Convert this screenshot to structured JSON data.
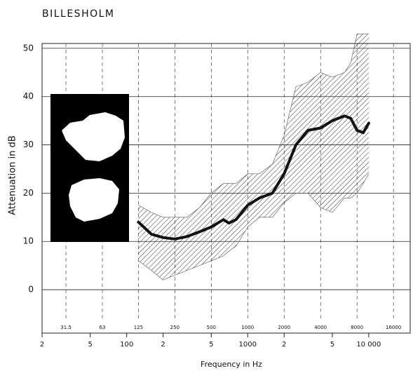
{
  "chart_data": {
    "type": "line",
    "title": "BILLESHOLM",
    "y_label": "Attenuation in dB",
    "x_label": "Frequency in Hz",
    "x": [
      125,
      160,
      200,
      250,
      315,
      400,
      500,
      630,
      700,
      800,
      1000,
      1250,
      1600,
      2000,
      2500,
      3150,
      4000,
      5000,
      6300,
      7100,
      8000,
      9000,
      10000
    ],
    "values": [
      14,
      11.5,
      10.8,
      10.5,
      11,
      12,
      13,
      14.5,
      13.8,
      14.5,
      17.5,
      19,
      20,
      24,
      30,
      33,
      33.5,
      35,
      36,
      35.5,
      33,
      32.5,
      34.5
    ],
    "range_high": [
      17.5,
      16,
      15,
      15,
      15,
      17,
      20,
      22,
      22,
      22,
      24,
      24,
      26,
      32,
      42,
      43,
      45,
      44,
      45,
      47,
      53,
      53,
      53
    ],
    "range_low": [
      6,
      4,
      2,
      3,
      4,
      5,
      6,
      7,
      8,
      9,
      13,
      15,
      15,
      18,
      20,
      20,
      17,
      16,
      19,
      19,
      20,
      22,
      24
    ],
    "color": "#111111",
    "log_x": true,
    "grid": true,
    "xlim": [
      20,
      22000
    ],
    "ylim": [
      -9,
      51
    ],
    "yticks": [
      0,
      10,
      20,
      30,
      40,
      50
    ],
    "xticks": [
      {
        "value": 20,
        "label": "2"
      },
      {
        "value": 50,
        "label": "5"
      },
      100,
      {
        "value": 200,
        "label": "2"
      },
      {
        "value": 500,
        "label": "5"
      },
      1000,
      {
        "value": 2000,
        "label": "2"
      },
      {
        "value": 5000,
        "label": "5"
      },
      {
        "value": 10000,
        "label": "10 000"
      }
    ],
    "x2ticks": [
      31.5,
      63,
      125,
      250,
      500,
      1000,
      2000,
      4000,
      8000,
      16000
    ]
  }
}
